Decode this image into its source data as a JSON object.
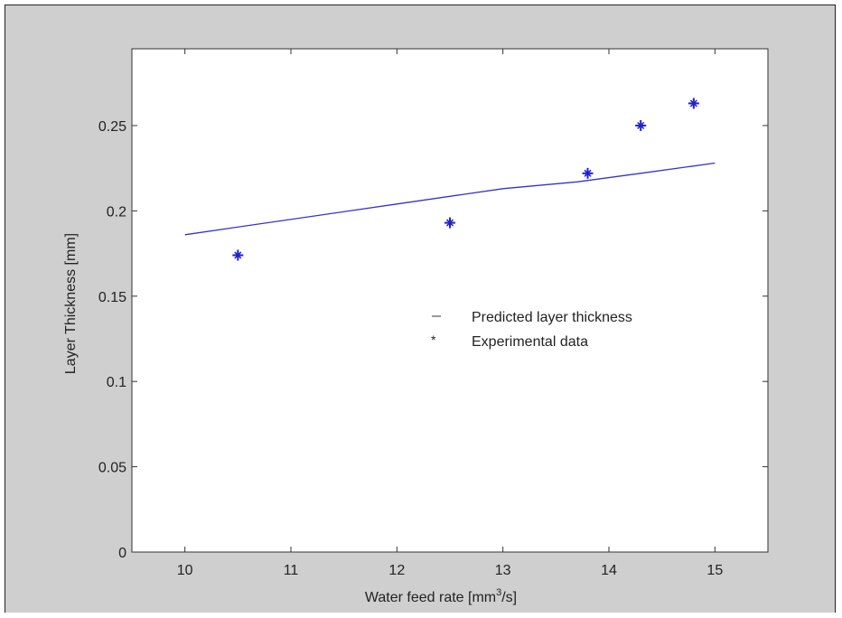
{
  "chart_data": {
    "type": "scatter",
    "title": "",
    "xlabel": "Water feed rate [mm",
    "xlabel_superscript": "3",
    "xlabel_suffix": "/s]",
    "ylabel": "Layer Thickness [mm]",
    "xlim": [
      9.5,
      15.5
    ],
    "ylim": [
      0,
      0.295
    ],
    "x_ticks": [
      "10",
      "11",
      "12",
      "13",
      "14",
      "15"
    ],
    "x_tick_values": [
      10,
      11,
      12,
      13,
      14,
      15
    ],
    "y_ticks": [
      "0",
      "0.05",
      "0.1",
      "0.15",
      "0.2",
      "0.25"
    ],
    "y_tick_values": [
      0,
      0.05,
      0.1,
      0.15,
      0.2,
      0.25
    ],
    "grid": false,
    "legend_position": "center-right",
    "series": [
      {
        "name": "Predicted layer thickness",
        "kind": "line",
        "marker": "--",
        "color": "#3333cc",
        "x": [
          10,
          12,
          13,
          13.7,
          14.3,
          15
        ],
        "y": [
          0.186,
          0.204,
          0.213,
          0.217,
          0.222,
          0.228
        ]
      },
      {
        "name": "Experimental data",
        "kind": "scatter",
        "marker": "*",
        "color": "#2222cc",
        "x": [
          10.5,
          12.5,
          13.8,
          14.3,
          14.8
        ],
        "y": [
          0.174,
          0.193,
          0.222,
          0.25,
          0.263
        ]
      }
    ]
  }
}
